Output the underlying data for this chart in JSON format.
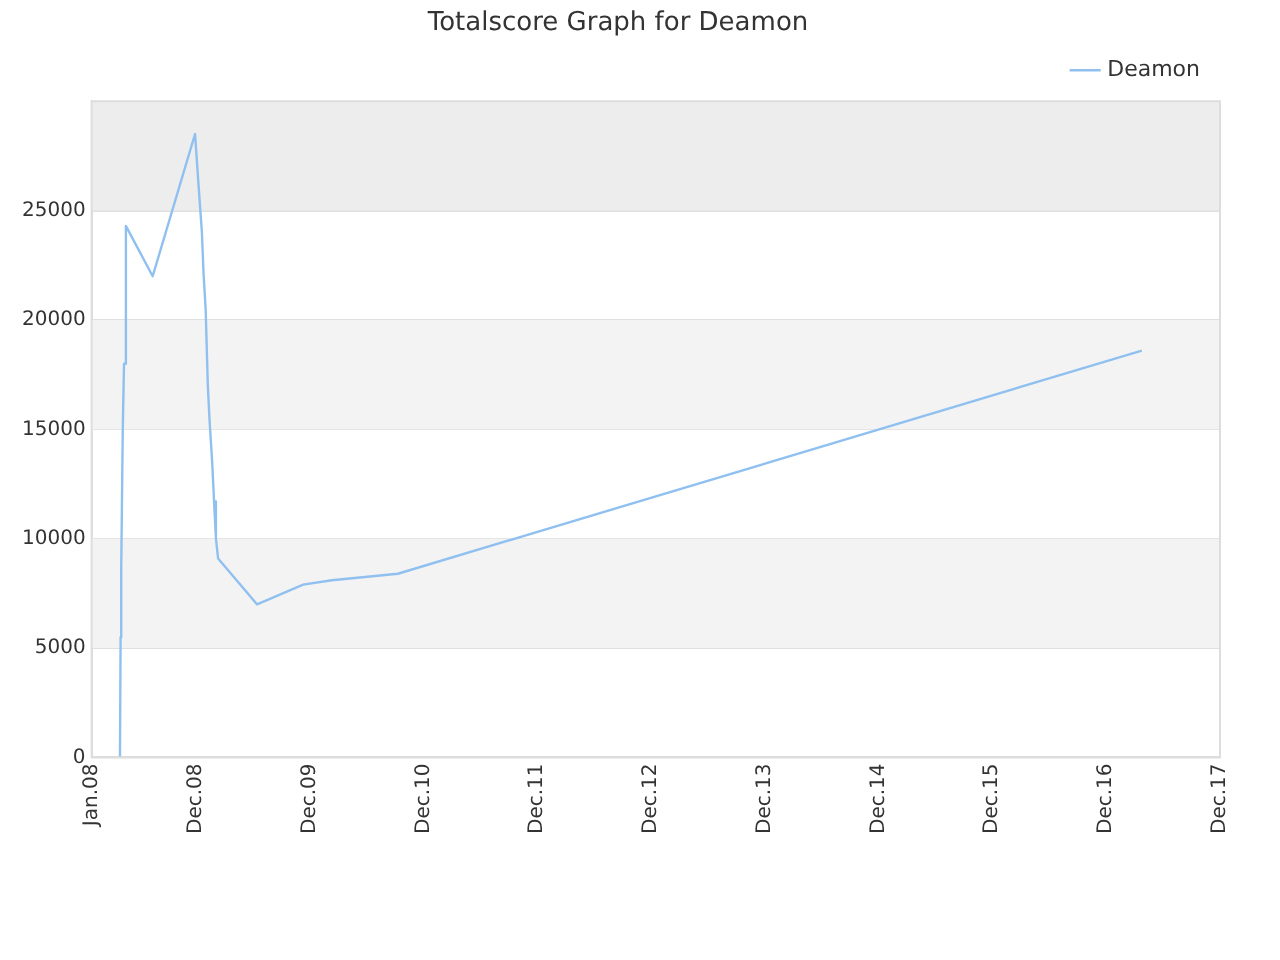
{
  "chart_data": {
    "type": "line",
    "title": "Totalscore Graph for Deamon",
    "x": [
      "2008-04-01",
      "2008-04-03",
      "2008-04-05",
      "2008-04-10",
      "2008-04-14",
      "2008-04-20",
      "2008-07-15",
      "2008-11-28",
      "2008-12-10",
      "2008-12-20",
      "2008-12-25",
      "2009-01-01",
      "2009-01-08",
      "2009-01-14",
      "2009-01-22",
      "2009-01-28",
      "2009-02-03",
      "2009-02-10",
      "2009-06-15",
      "2009-11-10",
      "2010-02-10",
      "2010-09-10",
      "2017-03-25"
    ],
    "series": [
      {
        "name": "Deamon",
        "color": "#90c0f0",
        "values": [
          0,
          5500,
          8600,
          15000,
          18000,
          24300,
          22000,
          28500,
          26000,
          24000,
          22200,
          20500,
          17000,
          15300,
          13500,
          11700,
          10000,
          9100,
          7000,
          7900,
          8100,
          8400,
          18600
        ]
      }
    ],
    "xlim": [
      "2008-01-01",
      "2017-12-01"
    ],
    "xticks": [
      {
        "value": "2008-01-01",
        "label": "Jan.08"
      },
      {
        "value": "2008-12-01",
        "label": "Dec.08"
      },
      {
        "value": "2009-12-01",
        "label": "Dec.09"
      },
      {
        "value": "2010-12-01",
        "label": "Dec.10"
      },
      {
        "value": "2011-12-01",
        "label": "Dec.11"
      },
      {
        "value": "2012-12-01",
        "label": "Dec.12"
      },
      {
        "value": "2013-12-01",
        "label": "Dec.13"
      },
      {
        "value": "2014-12-01",
        "label": "Dec.14"
      },
      {
        "value": "2015-12-01",
        "label": "Dec.15"
      },
      {
        "value": "2016-12-01",
        "label": "Dec.16"
      },
      {
        "value": "2017-12-01",
        "label": "Dec.17"
      }
    ],
    "ylim": [
      0,
      30000
    ],
    "yticks": [
      0,
      5000,
      10000,
      15000,
      20000,
      25000
    ],
    "bands": [
      {
        "axis": "y",
        "from": 5000,
        "to": 10000,
        "color": "#f3f3f3"
      },
      {
        "axis": "y",
        "from": 15000,
        "to": 20000,
        "color": "#f3f3f3"
      },
      {
        "axis": "y",
        "from": 25000,
        "to": 30000,
        "color": "#ededed"
      }
    ],
    "grid": "y",
    "legend": "top right",
    "marker": "none",
    "line_style": "solid"
  }
}
